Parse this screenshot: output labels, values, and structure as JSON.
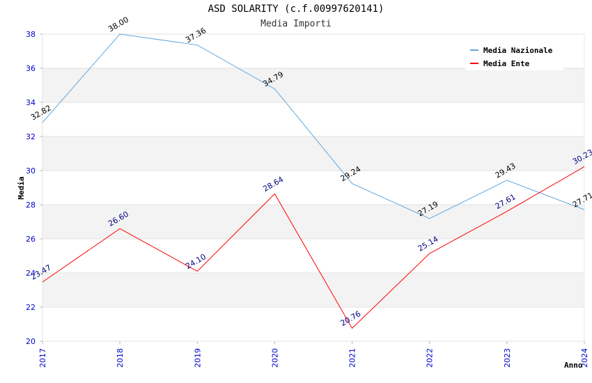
{
  "chart_data": {
    "type": "line",
    "title": "ASD SOLARITY (c.f.00997620141)",
    "subtitle": "Media Importi",
    "xlabel": "Anno",
    "ylabel": "Media",
    "x": [
      "2017",
      "2018",
      "2019",
      "2020",
      "2021",
      "2022",
      "2023",
      "2024"
    ],
    "ylim": [
      20,
      38
    ],
    "yticks": [
      20,
      22,
      24,
      26,
      28,
      30,
      32,
      34,
      36,
      38
    ],
    "grid": true,
    "legend_position": "top-right",
    "series": [
      {
        "name": "Media Nazionale",
        "color": "#5fa8e0",
        "label_color": "#000000",
        "values": [
          32.82,
          38.0,
          37.36,
          34.79,
          29.24,
          27.19,
          29.43,
          27.71
        ],
        "labels": [
          "32.82",
          "38.00",
          "37.36",
          "34.79",
          "29.24",
          "27.19",
          "29.43",
          "27.71"
        ]
      },
      {
        "name": "Media Ente",
        "color": "#ff0000",
        "label_color": "#000080",
        "values": [
          23.47,
          26.6,
          24.1,
          28.64,
          20.76,
          25.14,
          27.61,
          30.23
        ],
        "labels": [
          "23.47",
          "26.60",
          "24.10",
          "28.64",
          "20.76",
          "25.14",
          "27.61",
          "30.23"
        ]
      }
    ]
  }
}
